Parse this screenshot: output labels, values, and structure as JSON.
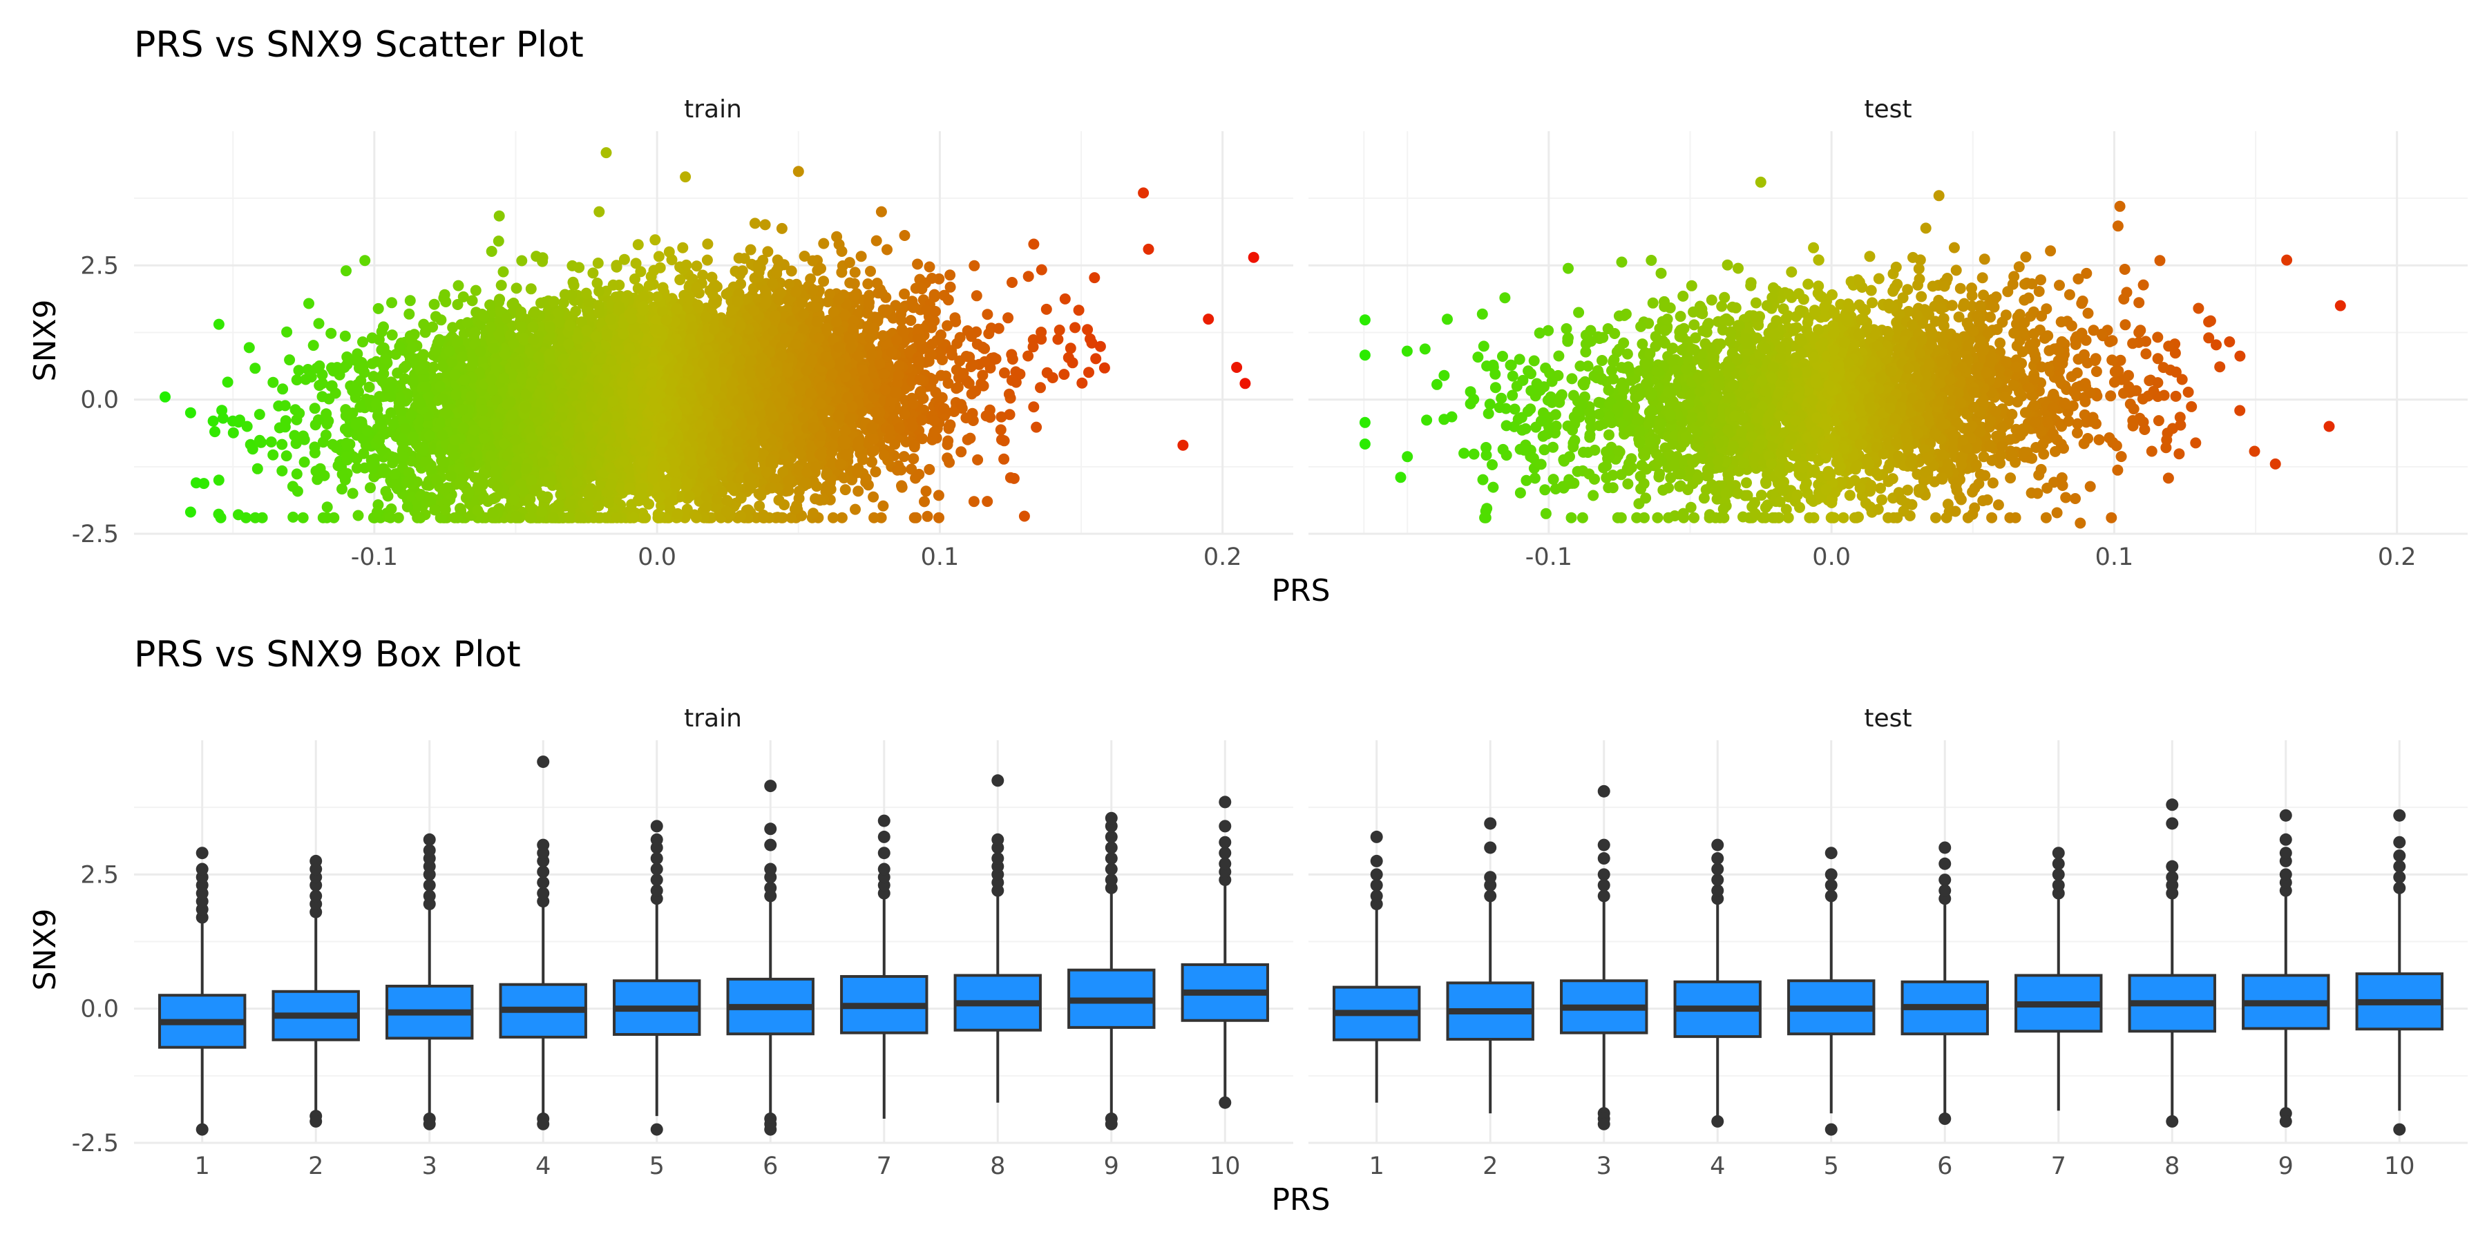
{
  "chart_data": [
    {
      "type": "scatter",
      "title": "PRS vs SNX9 Scatter Plot",
      "xlabel": "PRS",
      "ylabel": "SNX9",
      "panels": [
        "train",
        "test"
      ],
      "xlim": [
        -0.185,
        0.225
      ],
      "ylim": [
        -2.5,
        5.0
      ],
      "xticks": [
        -0.1,
        0.0,
        0.1,
        0.2
      ],
      "xtick_labels": [
        "-0.1",
        "0.0",
        "0.1",
        "0.2"
      ],
      "yticks": [
        -2.5,
        0.0,
        2.5
      ],
      "ytick_labels": [
        "-2.5",
        "0.0",
        "2.5"
      ],
      "grid": true,
      "color_scale": {
        "low": "#22ee00",
        "mid": "#b8b800",
        "high": "#ee1100",
        "variable": "PRS",
        "legend": "none"
      },
      "distribution": {
        "train": {
          "x_mean": 0.0,
          "x_sd": 0.048,
          "y_slope": 4.2,
          "y_sd": 0.95,
          "n": 9000
        },
        "test": {
          "x_mean": 0.0,
          "x_sd": 0.048,
          "y_slope": 3.0,
          "y_sd": 0.95,
          "n": 3500
        }
      },
      "extreme_points": {
        "train": [
          {
            "x": -0.174,
            "y": 0.05
          },
          {
            "x": -0.163,
            "y": -1.55
          },
          {
            "x": -0.157,
            "y": -0.4
          },
          {
            "x": -0.155,
            "y": -1.5
          },
          {
            "x": -0.145,
            "y": -0.5
          },
          {
            "x": 0.211,
            "y": 2.65
          },
          {
            "x": 0.205,
            "y": 0.6
          },
          {
            "x": 0.208,
            "y": 0.3
          },
          {
            "x": 0.172,
            "y": 3.85
          },
          {
            "x": -0.018,
            "y": 4.6
          },
          {
            "x": 0.01,
            "y": 4.15
          },
          {
            "x": 0.05,
            "y": 4.25
          },
          {
            "x": 0.186,
            "y": -0.85
          },
          {
            "x": 0.195,
            "y": 1.5
          },
          {
            "x": -0.11,
            "y": 2.4
          }
        ],
        "test": [
          {
            "x": -0.137,
            "y": 0.45
          },
          {
            "x": -0.13,
            "y": -1.0
          },
          {
            "x": -0.025,
            "y": 4.05
          },
          {
            "x": 0.038,
            "y": 3.8
          },
          {
            "x": 0.102,
            "y": 3.6
          },
          {
            "x": 0.161,
            "y": 2.6
          },
          {
            "x": 0.18,
            "y": 1.75
          },
          {
            "x": 0.176,
            "y": -0.5
          },
          {
            "x": 0.157,
            "y": -1.2
          },
          {
            "x": 0.088,
            "y": -2.3
          }
        ]
      }
    },
    {
      "type": "box",
      "title": "PRS vs SNX9 Box Plot",
      "xlabel": "PRS",
      "ylabel": "SNX9",
      "panels": [
        "train",
        "test"
      ],
      "categories": [
        "1",
        "2",
        "3",
        "4",
        "5",
        "6",
        "7",
        "8",
        "9",
        "10"
      ],
      "ylim": [
        -2.5,
        5.0
      ],
      "yticks": [
        -2.5,
        0.0,
        2.5
      ],
      "ytick_labels": [
        "-2.5",
        "0.0",
        "2.5"
      ],
      "grid": true,
      "box_color": "#1e90ff",
      "series": [
        {
          "name": "train",
          "boxes": [
            {
              "q1": -0.72,
              "median": -0.25,
              "q3": 0.25,
              "lower": -2.15,
              "upper": 1.65,
              "outliers_high": [
                1.7,
                1.85,
                2.0,
                2.15,
                2.3,
                2.45,
                2.6,
                2.9
              ],
              "outliers_low": [
                -2.25
              ]
            },
            {
              "q1": -0.58,
              "median": -0.13,
              "q3": 0.32,
              "lower": -1.95,
              "upper": 1.75,
              "outliers_high": [
                1.8,
                1.95,
                2.1,
                2.3,
                2.45,
                2.6,
                2.75
              ],
              "outliers_low": [
                -2.0,
                -2.1
              ]
            },
            {
              "q1": -0.55,
              "median": -0.07,
              "q3": 0.42,
              "lower": -2.0,
              "upper": 1.9,
              "outliers_high": [
                1.95,
                2.1,
                2.3,
                2.5,
                2.65,
                2.8,
                2.95,
                3.15
              ],
              "outliers_low": [
                -2.05,
                -2.15
              ]
            },
            {
              "q1": -0.53,
              "median": -0.02,
              "q3": 0.45,
              "lower": -2.0,
              "upper": 1.95,
              "outliers_high": [
                2.0,
                2.15,
                2.35,
                2.55,
                2.75,
                2.9,
                3.05,
                4.6
              ],
              "outliers_low": [
                -2.05,
                -2.15
              ]
            },
            {
              "q1": -0.48,
              "median": 0.0,
              "q3": 0.52,
              "lower": -2.0,
              "upper": 2.0,
              "outliers_high": [
                2.05,
                2.2,
                2.4,
                2.6,
                2.8,
                3.0,
                3.15,
                3.4
              ],
              "outliers_low": [
                -2.25
              ]
            },
            {
              "q1": -0.47,
              "median": 0.03,
              "q3": 0.55,
              "lower": -2.0,
              "upper": 2.05,
              "outliers_high": [
                2.1,
                2.25,
                2.45,
                2.6,
                3.05,
                3.35,
                4.15
              ],
              "outliers_low": [
                -2.05,
                -2.15,
                -2.25
              ]
            },
            {
              "q1": -0.45,
              "median": 0.05,
              "q3": 0.6,
              "lower": -2.05,
              "upper": 2.1,
              "outliers_high": [
                2.15,
                2.3,
                2.45,
                2.6,
                2.9,
                3.2,
                3.5
              ],
              "outliers_low": []
            },
            {
              "q1": -0.4,
              "median": 0.1,
              "q3": 0.62,
              "lower": -1.75,
              "upper": 2.15,
              "outliers_high": [
                2.2,
                2.35,
                2.5,
                2.65,
                2.8,
                3.0,
                3.15,
                4.25
              ],
              "outliers_low": []
            },
            {
              "q1": -0.35,
              "median": 0.15,
              "q3": 0.72,
              "lower": -1.95,
              "upper": 2.2,
              "outliers_high": [
                2.25,
                2.4,
                2.6,
                2.8,
                3.0,
                3.2,
                3.4,
                3.55
              ],
              "outliers_low": [
                -2.05,
                -2.15
              ]
            },
            {
              "q1": -0.22,
              "median": 0.3,
              "q3": 0.82,
              "lower": -1.7,
              "upper": 2.35,
              "outliers_high": [
                2.4,
                2.55,
                2.7,
                2.9,
                3.1,
                3.4,
                3.85
              ],
              "outliers_low": [
                -1.75
              ]
            }
          ]
        },
        {
          "name": "test",
          "boxes": [
            {
              "q1": -0.58,
              "median": -0.08,
              "q3": 0.4,
              "lower": -1.75,
              "upper": 1.9,
              "outliers_high": [
                1.95,
                2.1,
                2.3,
                2.5,
                2.75,
                3.2
              ],
              "outliers_low": []
            },
            {
              "q1": -0.57,
              "median": -0.05,
              "q3": 0.48,
              "lower": -1.95,
              "upper": 2.05,
              "outliers_high": [
                2.1,
                2.3,
                2.45,
                3.0,
                3.45
              ],
              "outliers_low": []
            },
            {
              "q1": -0.45,
              "median": 0.02,
              "q3": 0.52,
              "lower": -1.9,
              "upper": 2.05,
              "outliers_high": [
                2.1,
                2.3,
                2.5,
                2.8,
                3.05,
                4.05
              ],
              "outliers_low": [
                -1.95,
                -2.05,
                -2.15
              ]
            },
            {
              "q1": -0.52,
              "median": 0.0,
              "q3": 0.5,
              "lower": -2.0,
              "upper": 2.0,
              "outliers_high": [
                2.05,
                2.2,
                2.4,
                2.6,
                2.8,
                3.05
              ],
              "outliers_low": [
                -2.1
              ]
            },
            {
              "q1": -0.47,
              "median": 0.0,
              "q3": 0.52,
              "lower": -1.95,
              "upper": 2.05,
              "outliers_high": [
                2.1,
                2.3,
                2.5,
                2.9
              ],
              "outliers_low": [
                -2.25
              ]
            },
            {
              "q1": -0.47,
              "median": 0.03,
              "q3": 0.5,
              "lower": -1.95,
              "upper": 2.0,
              "outliers_high": [
                2.05,
                2.2,
                2.4,
                2.7,
                3.0
              ],
              "outliers_low": [
                -2.05
              ]
            },
            {
              "q1": -0.42,
              "median": 0.08,
              "q3": 0.62,
              "lower": -1.9,
              "upper": 2.1,
              "outliers_high": [
                2.15,
                2.3,
                2.5,
                2.7,
                2.9
              ],
              "outliers_low": []
            },
            {
              "q1": -0.42,
              "median": 0.1,
              "q3": 0.62,
              "lower": -2.0,
              "upper": 2.1,
              "outliers_high": [
                2.15,
                2.3,
                2.45,
                2.65,
                3.45,
                3.8
              ],
              "outliers_low": [
                -2.1
              ]
            },
            {
              "q1": -0.37,
              "median": 0.1,
              "q3": 0.62,
              "lower": -1.9,
              "upper": 2.15,
              "outliers_high": [
                2.2,
                2.35,
                2.5,
                2.75,
                2.9,
                3.15,
                3.6
              ],
              "outliers_low": [
                -1.95,
                -2.1
              ]
            },
            {
              "q1": -0.38,
              "median": 0.12,
              "q3": 0.65,
              "lower": -1.9,
              "upper": 2.2,
              "outliers_high": [
                2.25,
                2.45,
                2.65,
                2.85,
                3.1,
                3.6
              ],
              "outliers_low": [
                -2.25
              ]
            }
          ]
        }
      ]
    }
  ]
}
